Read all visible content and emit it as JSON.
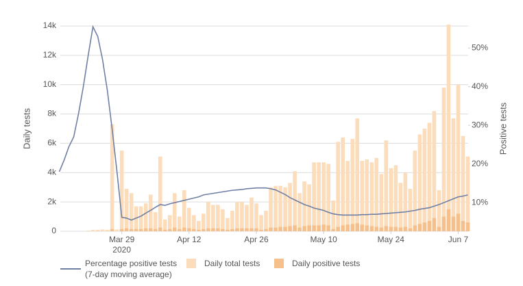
{
  "chart_data": {
    "type": "combo",
    "y_label": "Daily tests",
    "y2_label": "Positive tests",
    "categories": [
      null,
      null,
      null,
      null,
      null,
      null,
      null,
      null,
      null,
      null,
      null,
      null,
      null,
      "Mar 29",
      null,
      null,
      null,
      null,
      null,
      null,
      null,
      null,
      null,
      null,
      null,
      null,
      null,
      "Apr 12",
      null,
      null,
      null,
      null,
      null,
      null,
      null,
      null,
      null,
      null,
      null,
      null,
      null,
      "Apr 26",
      null,
      null,
      null,
      null,
      null,
      null,
      null,
      null,
      null,
      null,
      null,
      null,
      null,
      "May 10",
      null,
      null,
      null,
      null,
      null,
      null,
      null,
      null,
      null,
      null,
      null,
      null,
      null,
      "May 24",
      null,
      null,
      null,
      null,
      null,
      null,
      null,
      null,
      null,
      null,
      null,
      null,
      null,
      "Jun 7",
      null,
      null
    ],
    "x_year_label": "2020",
    "series": [
      {
        "name": "Percentage positive tests\n(7-day moving average)",
        "type": "line",
        "axis": "y2",
        "color": "#6f7fa4",
        "values": [
          18,
          21,
          24.5,
          27,
          33,
          40,
          48,
          55.5,
          53,
          47,
          39,
          29,
          18,
          6.2,
          6,
          5.5,
          6,
          6.5,
          7.3,
          8,
          8.8,
          9.5,
          9.3,
          9.7,
          10,
          10.3,
          10.6,
          10.9,
          11.2,
          11.5,
          12,
          12.2,
          12.4,
          12.6,
          12.8,
          13,
          13.2,
          13.3,
          13.4,
          13.6,
          13.7,
          13.8,
          13.8,
          13.8,
          13.6,
          13.3,
          12.7,
          12.1,
          11.3,
          10.7,
          10.1,
          9.5,
          9.1,
          8.6,
          8.3,
          8,
          7.5,
          7.1,
          6.9,
          6.8,
          6.8,
          6.8,
          6.8,
          6.9,
          6.9,
          7,
          7,
          7.1,
          7.2,
          7.3,
          7.4,
          7.5,
          7.6,
          7.8,
          8,
          8.3,
          8.5,
          8.7,
          9.1,
          9.5,
          10,
          10.5,
          11,
          11.5,
          11.7,
          12
        ]
      },
      {
        "name": "Daily total tests",
        "type": "bar",
        "color": "#fbdcbb",
        "values": [
          0,
          0,
          0,
          0,
          0,
          0,
          50,
          100,
          100,
          120,
          100,
          7300,
          120,
          5500,
          2900,
          2600,
          1700,
          1700,
          1900,
          2500,
          1300,
          5100,
          800,
          1100,
          2600,
          1000,
          2800,
          1600,
          1100,
          700,
          1200,
          2000,
          1800,
          1800,
          1500,
          900,
          1400,
          2000,
          2000,
          1800,
          2300,
          1900,
          1100,
          1400,
          3000,
          3100,
          3100,
          3000,
          3300,
          4100,
          2600,
          3400,
          3200,
          4700,
          4700,
          4700,
          4600,
          2100,
          6100,
          6400,
          4800,
          6300,
          7700,
          4800,
          4900,
          4700,
          5000,
          3900,
          6200,
          4300,
          4500,
          3300,
          4000,
          2900,
          5500,
          6600,
          7000,
          7400,
          8200,
          2800,
          9800,
          14100,
          7700,
          10000,
          6500,
          5100
        ]
      },
      {
        "name": "Daily positive tests",
        "type": "bar",
        "color": "#f5c08c",
        "values": [
          0,
          0,
          0,
          0,
          0,
          0,
          0,
          0,
          0,
          0,
          0,
          150,
          0,
          150,
          200,
          150,
          150,
          150,
          200,
          200,
          150,
          250,
          100,
          150,
          250,
          150,
          250,
          200,
          150,
          100,
          150,
          200,
          200,
          200,
          150,
          100,
          150,
          200,
          200,
          200,
          200,
          200,
          100,
          150,
          250,
          250,
          300,
          300,
          350,
          400,
          250,
          350,
          400,
          400,
          400,
          450,
          400,
          150,
          300,
          400,
          450,
          500,
          550,
          450,
          400,
          350,
          300,
          250,
          350,
          300,
          300,
          250,
          300,
          200,
          400,
          500,
          600,
          700,
          900,
          300,
          1000,
          1500,
          1000,
          1200,
          700,
          600
        ]
      }
    ],
    "ylim": [
      0,
      14000
    ],
    "yticks": [
      0,
      {
        "value": 2000,
        "label": "2k"
      },
      {
        "value": 4000,
        "label": "4k"
      },
      {
        "value": 6000,
        "label": "6k"
      },
      {
        "value": 8000,
        "label": "8k"
      },
      {
        "value": 10000,
        "label": "10k"
      },
      {
        "value": 12000,
        "label": "12k"
      },
      {
        "value": 14000,
        "label": "14k"
      }
    ],
    "y2lim": [
      2.6,
      55.7
    ],
    "y2ticks": [
      {
        "value": 10,
        "label": "10%"
      },
      {
        "value": 20,
        "label": "20%"
      },
      {
        "value": 30,
        "label": "30%"
      },
      {
        "value": 40,
        "label": "40%"
      },
      {
        "value": 50,
        "label": "50%"
      }
    ],
    "grid": true
  }
}
